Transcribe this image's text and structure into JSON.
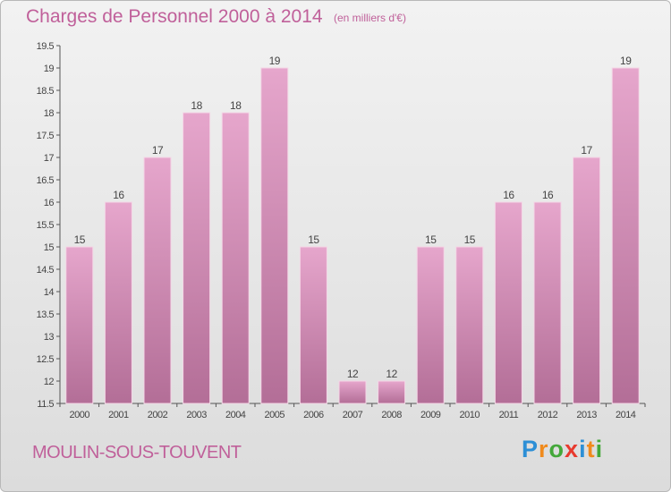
{
  "title": "Charges de Personnel 2000 à 2014",
  "subtitle": "(en milliers d'€)",
  "commune": "MOULIN-SOUS-TOUVENT",
  "logo": {
    "letters": [
      "P",
      "r",
      "o",
      "x",
      "i",
      "t",
      "i"
    ],
    "colors": [
      "#2d8fd6",
      "#f08a1c",
      "#44a83a",
      "#e83a2e",
      "#2d8fd6",
      "#f08a1c",
      "#44a83a"
    ]
  },
  "colors": {
    "bar_light": "#e6a6cc",
    "bar_dark": "#b36e97",
    "text_accent": "#c0609a"
  },
  "chart_data": {
    "type": "bar",
    "categories": [
      "2000",
      "2001",
      "2002",
      "2003",
      "2004",
      "2005",
      "2006",
      "2007",
      "2008",
      "2009",
      "2010",
      "2011",
      "2012",
      "2013",
      "2014"
    ],
    "values": [
      15,
      16,
      17,
      18,
      18,
      19,
      15,
      12,
      12,
      15,
      15,
      16,
      16,
      17,
      19
    ],
    "labels": [
      "15",
      "16",
      "17",
      "18",
      "18",
      "19",
      "15",
      "12",
      "12",
      "15",
      "15",
      "16",
      "16",
      "17",
      "19"
    ],
    "ylim": [
      11.5,
      19.5
    ],
    "yticks": [
      11.5,
      12,
      12.5,
      13,
      13.5,
      14,
      14.5,
      15,
      15.5,
      16,
      16.5,
      17,
      17.5,
      18,
      18.5,
      19,
      19.5
    ],
    "ytick_labels": [
      "11.5",
      "12",
      "12.5",
      "13",
      "13.5",
      "14",
      "14.5",
      "15",
      "15.5",
      "16",
      "16.5",
      "17",
      "17.5",
      "18",
      "18.5",
      "19",
      "19.5"
    ],
    "grid": false,
    "xlabel": "",
    "ylabel": ""
  }
}
